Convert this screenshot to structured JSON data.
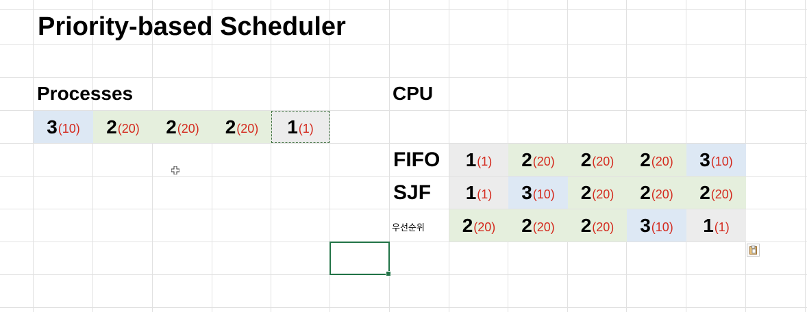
{
  "title": "Priority-based Scheduler",
  "processes": {
    "label": "Processes",
    "items": [
      {
        "id": "3",
        "burst": "(10)",
        "color": "#dde8f4"
      },
      {
        "id": "2",
        "burst": "(20)",
        "color": "#e5efdd"
      },
      {
        "id": "2",
        "burst": "(20)",
        "color": "#e5efdd"
      },
      {
        "id": "2",
        "burst": "(20)",
        "color": "#e5efdd"
      },
      {
        "id": "1",
        "burst": "(1)",
        "color": "#ececec"
      }
    ]
  },
  "cpu": {
    "label": "CPU",
    "rows": [
      {
        "label": "FIFO",
        "cells": [
          {
            "id": "1",
            "burst": "(1)",
            "color": "#ececec"
          },
          {
            "id": "2",
            "burst": "(20)",
            "color": "#e5efdd"
          },
          {
            "id": "2",
            "burst": "(20)",
            "color": "#e5efdd"
          },
          {
            "id": "2",
            "burst": "(20)",
            "color": "#e5efdd"
          },
          {
            "id": "3",
            "burst": "(10)",
            "color": "#dde8f4"
          }
        ]
      },
      {
        "label": "SJF",
        "cells": [
          {
            "id": "1",
            "burst": "(1)",
            "color": "#ececec"
          },
          {
            "id": "3",
            "burst": "(10)",
            "color": "#dde8f4"
          },
          {
            "id": "2",
            "burst": "(20)",
            "color": "#e5efdd"
          },
          {
            "id": "2",
            "burst": "(20)",
            "color": "#e5efdd"
          },
          {
            "id": "2",
            "burst": "(20)",
            "color": "#e5efdd"
          }
        ]
      },
      {
        "label": "우선순위",
        "cells": [
          {
            "id": "2",
            "burst": "(20)",
            "color": "#e5efdd"
          },
          {
            "id": "2",
            "burst": "(20)",
            "color": "#e5efdd"
          },
          {
            "id": "2",
            "burst": "(20)",
            "color": "#e5efdd"
          },
          {
            "id": "3",
            "burst": "(10)",
            "color": "#dde8f4"
          },
          {
            "id": "1",
            "burst": "(1)",
            "color": "#ececec"
          }
        ]
      }
    ]
  },
  "colors": {
    "burst_text": "#d42a1e",
    "gridline": "#e1e1e1",
    "selection": "#217346"
  },
  "icons": {
    "paste_options": "clipboard-icon",
    "pointer": "crosshair-cursor-icon"
  }
}
